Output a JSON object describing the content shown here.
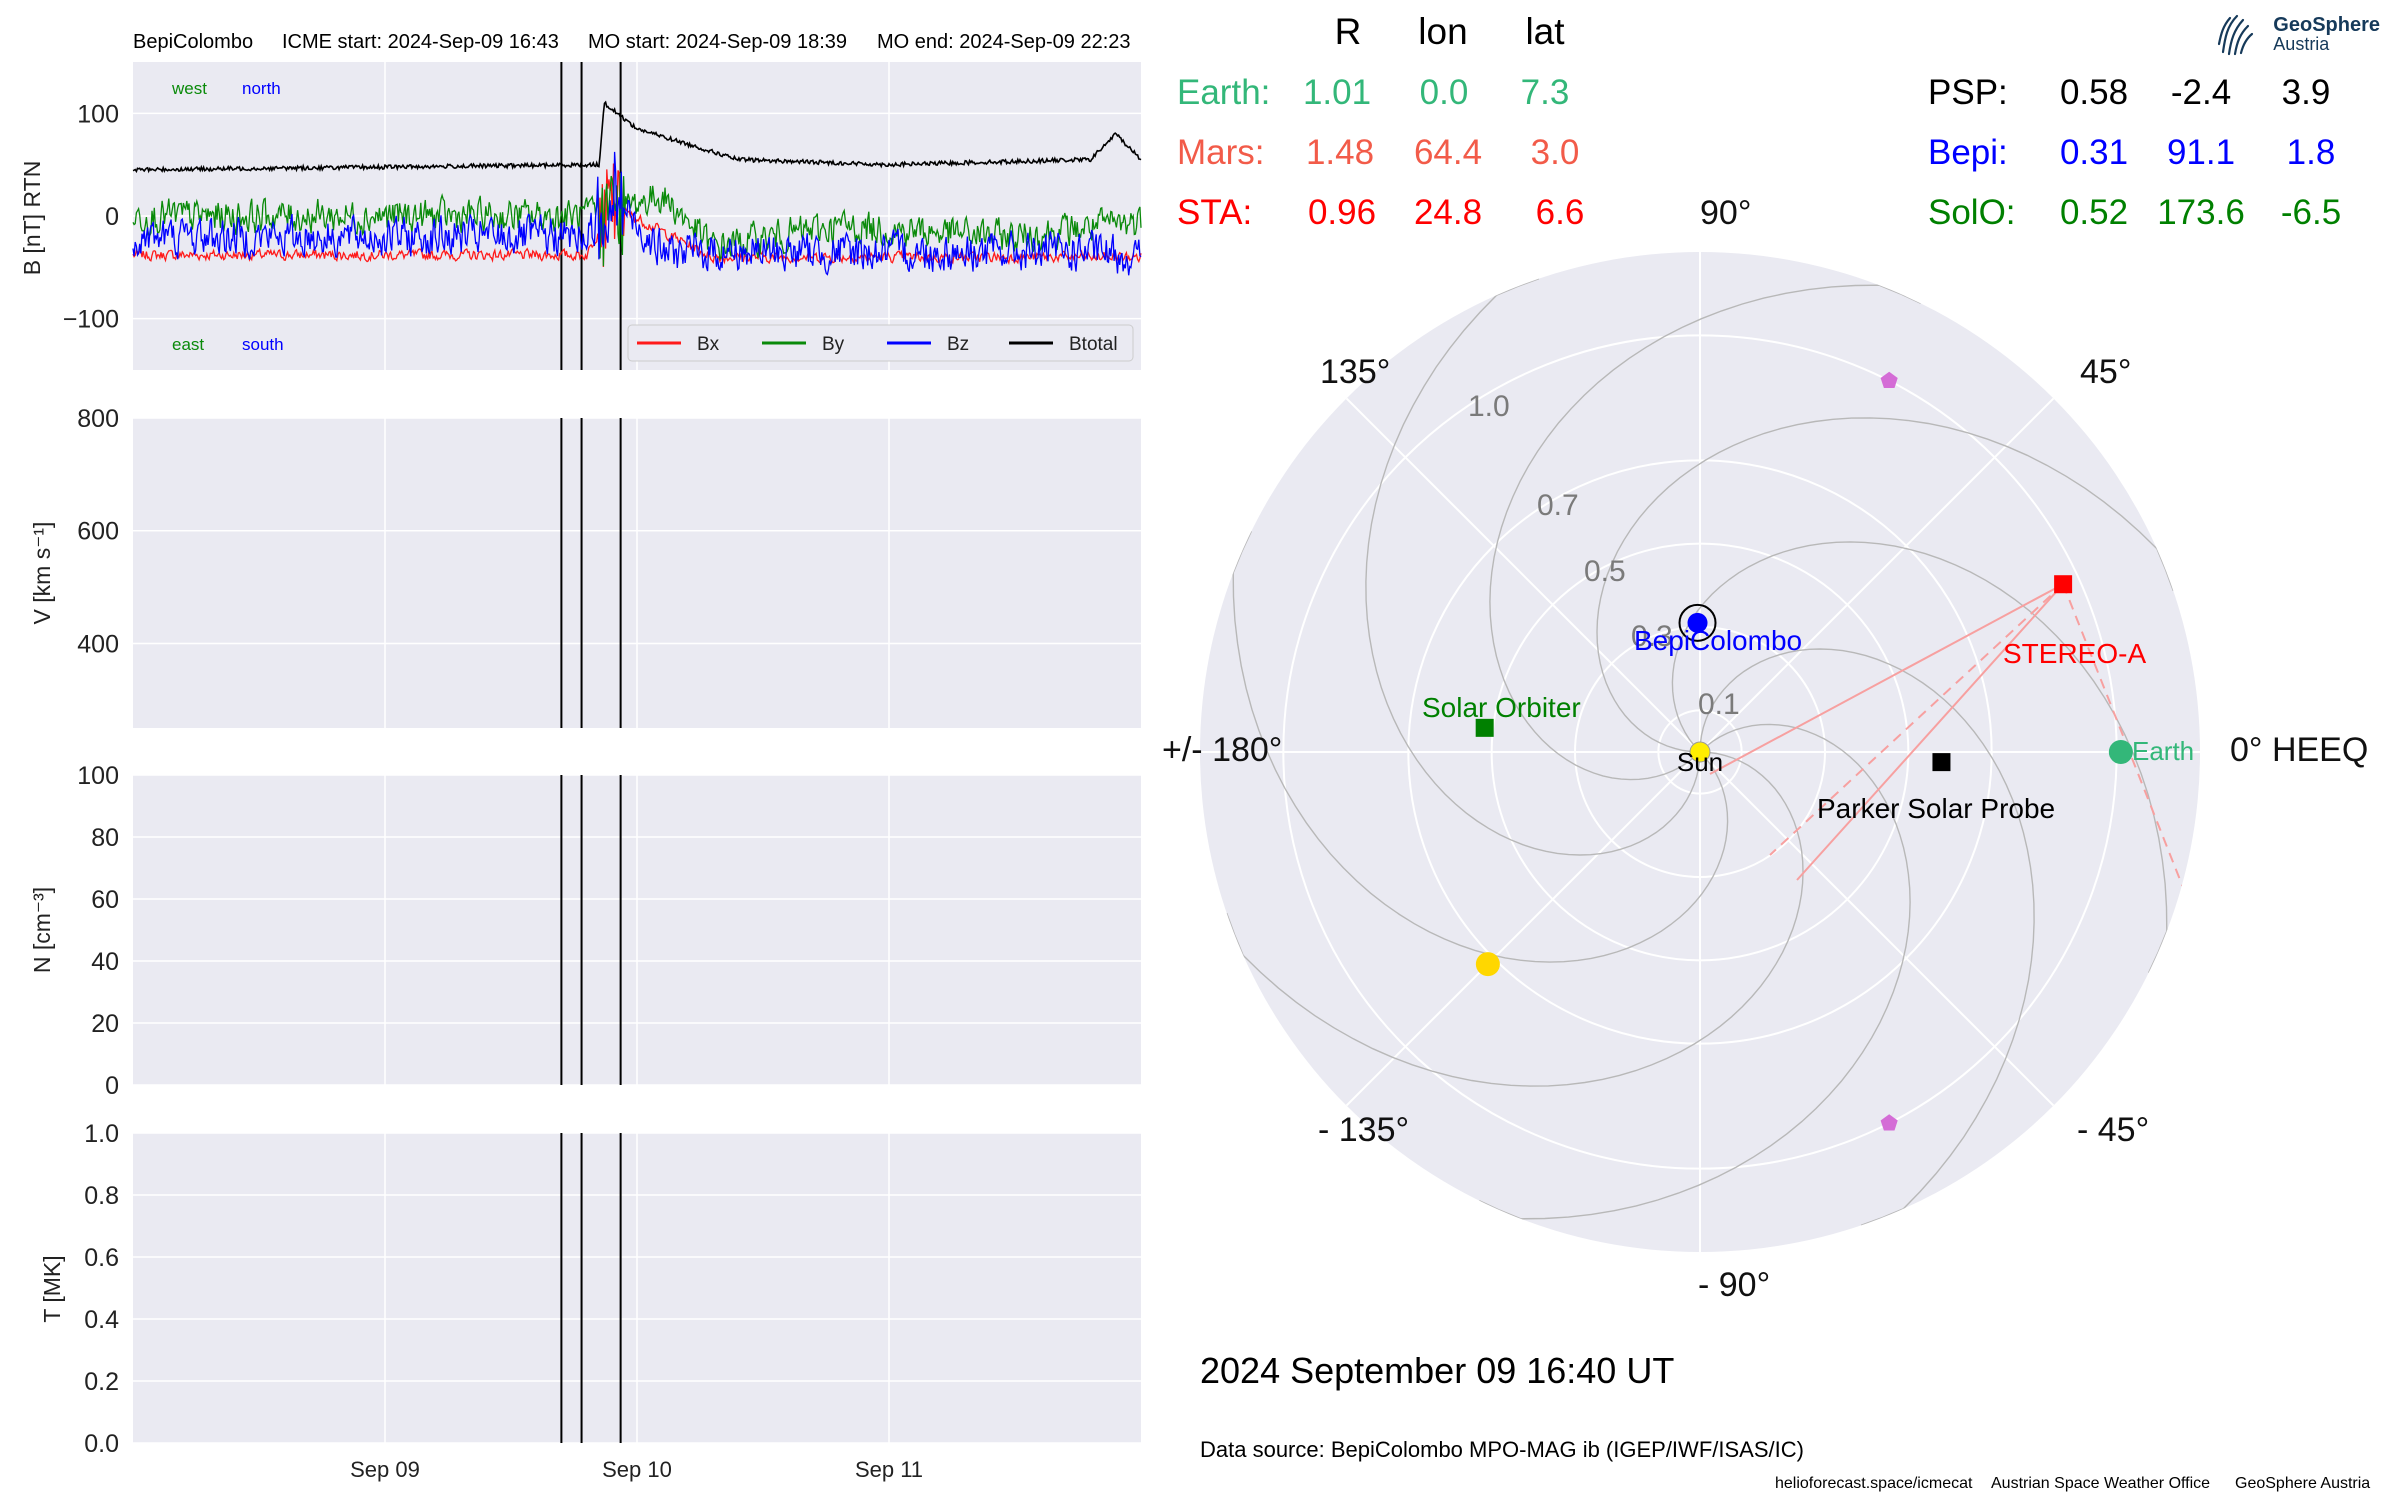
{
  "header": {
    "spacecraft": "BepiColombo",
    "icme_start": "ICME start: 2024-Sep-09 16:43",
    "mo_start": "MO start: 2024-Sep-09 18:39",
    "mo_end": "MO end: 2024-Sep-09 22:23"
  },
  "logo": {
    "line1": "GeoSphere",
    "line2": "Austria"
  },
  "colors": {
    "bx": "#ff1a1a",
    "by": "#0a8a0a",
    "bz": "#0000ff",
    "btotal": "#000000",
    "panel_bg": "#eaeaf2",
    "grid": "#ffffff",
    "earth": "#33b779",
    "mars": "#f25b49",
    "sta": "#ff0000",
    "psp": "#000000",
    "bepi": "#0000ff",
    "solo": "#008000",
    "sun": "#ffee00",
    "planet_yellow": "#ffd700",
    "pentagon": "#d46cd6",
    "stereo_line": "#f7a0a0"
  },
  "chart_data": [
    {
      "type": "line",
      "title": "BepiColombo    ICME start: 2024-Sep-09 16:43   MO start: 2024-Sep-09 18:39   MO end: 2024-Sep-09 22:23",
      "ylabel": "B [nT] RTN",
      "ylim": [
        -150,
        150
      ],
      "yticks": [
        "100",
        "0",
        "−100"
      ],
      "xlim_days": [
        0.0,
        4.0
      ],
      "xticks": [
        "Sep 09",
        "Sep 10",
        "Sep 11"
      ],
      "legend": [
        "Bx",
        "By",
        "Bz",
        "Btotal"
      ],
      "legend_position": "lower right",
      "annotations": {
        "west": "west",
        "north": "north",
        "east": "east",
        "south": "south"
      },
      "event_lines": [
        "2024-Sep-09 16:43",
        "2024-Sep-09 18:39",
        "2024-Sep-09 22:23"
      ],
      "series": [
        {
          "name": "Bx",
          "trend": [
            [
              0,
              -38
            ],
            [
              1.8,
              -38
            ],
            [
              1.9,
              10
            ],
            [
              2.3,
              -40
            ],
            [
              4,
              -40
            ]
          ],
          "noise": 7
        },
        {
          "name": "By",
          "trend": [
            [
              0,
              0
            ],
            [
              1.8,
              0
            ],
            [
              1.9,
              5
            ],
            [
              2.1,
              20
            ],
            [
              2.3,
              -30
            ],
            [
              2.8,
              -10
            ],
            [
              3.5,
              -20
            ],
            [
              4,
              -5
            ]
          ],
          "noise": 22
        },
        {
          "name": "Bz",
          "trend": [
            [
              0,
              -20
            ],
            [
              1.8,
              -20
            ],
            [
              1.9,
              20
            ],
            [
              2.1,
              -35
            ],
            [
              2.3,
              -35
            ],
            [
              3.8,
              -35
            ],
            [
              4,
              -40
            ]
          ],
          "noise": 26
        },
        {
          "name": "Btotal",
          "trend": [
            [
              0,
              45
            ],
            [
              1.85,
              50
            ],
            [
              1.87,
              110
            ],
            [
              2.0,
              85
            ],
            [
              2.2,
              70
            ],
            [
              2.4,
              55
            ],
            [
              3.0,
              50
            ],
            [
              3.8,
              55
            ],
            [
              3.9,
              80
            ],
            [
              4,
              55
            ]
          ],
          "noise": 2
        }
      ]
    },
    {
      "type": "line",
      "ylabel": "V [km s⁻¹]",
      "ylim": [
        250,
        800
      ],
      "yticks": [
        "800",
        "600",
        "400"
      ],
      "xticks": [
        "Sep 09",
        "Sep 10",
        "Sep 11"
      ],
      "series": []
    },
    {
      "type": "line",
      "ylabel": "N [cm⁻³]",
      "ylim": [
        0,
        100
      ],
      "yticks": [
        "100",
        "80",
        "60",
        "40",
        "20",
        "0"
      ],
      "xticks": [
        "Sep 09",
        "Sep 10",
        "Sep 11"
      ],
      "series": []
    },
    {
      "type": "line",
      "ylabel": "T [MK]",
      "ylim": [
        0.0,
        1.0
      ],
      "yticks": [
        "1.0",
        "0.8",
        "0.6",
        "0.4",
        "0.2",
        "0.0"
      ],
      "xticks": [
        "Sep 09",
        "Sep 10",
        "Sep 11"
      ],
      "series": []
    },
    {
      "type": "scatter",
      "subtype": "polar",
      "coordinate_system": "HEEQ",
      "angle_labels": [
        "0° HEEQ",
        "45°",
        "90°",
        "135°",
        "+/- 180°",
        "- 135°",
        "- 90°",
        "- 45°"
      ],
      "radial_labels": [
        "0.1",
        "0.3",
        "0.5",
        "0.7",
        "1.0"
      ],
      "radial_values_au": [
        0.1,
        0.3,
        0.5,
        0.7,
        1.0
      ],
      "bodies": [
        {
          "label": "Sun",
          "r": 0.0,
          "lon": 0.0,
          "marker": "circle",
          "color": "#ffee00"
        },
        {
          "label": "Earth",
          "r": 1.01,
          "lon": 0.0,
          "marker": "circle",
          "color": "#33b779"
        },
        {
          "label": "STEREO-A",
          "r": 0.96,
          "lon": 24.8,
          "marker": "square",
          "color": "#ff0000"
        },
        {
          "label": "Parker Solar Probe",
          "r": 0.58,
          "lon": -2.4,
          "marker": "square",
          "color": "#000000"
        },
        {
          "label": "BepiColombo",
          "r": 0.31,
          "lon": 91.1,
          "marker": "circle",
          "color": "#0000ff"
        },
        {
          "label": "Solar Orbiter",
          "r": 0.52,
          "lon": 173.6,
          "marker": "square",
          "color": "#008000"
        },
        {
          "label": "",
          "r": 0.72,
          "lon": -135.0,
          "marker": "circle",
          "color": "#ffd700"
        },
        {
          "label": "",
          "r": 1.0,
          "lon": 63.0,
          "marker": "pentagon",
          "color": "#d46cd6"
        },
        {
          "label": "",
          "r": 1.0,
          "lon": -63.0,
          "marker": "pentagon",
          "color": "#d46cd6"
        }
      ]
    }
  ],
  "positions_table": {
    "headers": [
      "R",
      "lon",
      "lat"
    ],
    "left_rows": [
      {
        "name": "Earth:",
        "R": "1.01",
        "lon": "0.0",
        "lat": "7.3"
      },
      {
        "name": "Mars:",
        "R": "1.48",
        "lon": "64.4",
        "lat": "3.0"
      },
      {
        "name": "STA:",
        "R": "0.96",
        "lon": "24.8",
        "lat": "6.6"
      }
    ],
    "right_rows": [
      {
        "name": "PSP:",
        "R": "0.58",
        "lon": "-2.4",
        "lat": "3.9"
      },
      {
        "name": "Bepi:",
        "R": "0.31",
        "lon": "91.1",
        "lat": "1.8"
      },
      {
        "name": "SolO:",
        "R": "0.52",
        "lon": "173.6",
        "lat": "-6.5"
      }
    ]
  },
  "footer": {
    "datetime": "2024 September 09  16:40 UT",
    "source": "Data source: BepiColombo MPO-MAG ib (IGEP/IWF/ISAS/IC)",
    "credit1": "helioforecast.space/icmecat",
    "credit2": "Austrian Space Weather Office",
    "credit3": "GeoSphere Austria"
  }
}
